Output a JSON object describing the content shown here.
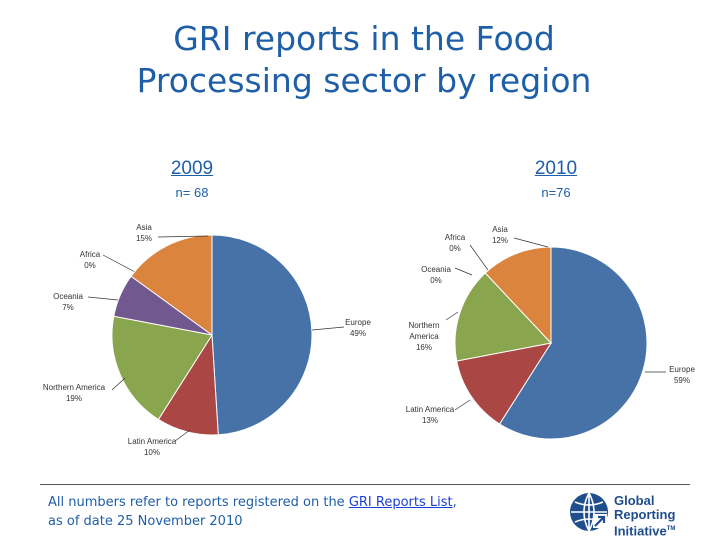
{
  "title_line1": "GRI reports in the Food",
  "title_line2": "Processing sector by region",
  "footnote": {
    "before": "All numbers refer to reports registered on the ",
    "link": "GRI Reports List",
    "after": ",",
    "line2": "as of date 25 November 2010"
  },
  "logo": {
    "line1": "Global",
    "line2": "Reporting",
    "line3": "Initiative",
    "tm": "TM"
  },
  "colors": {
    "Europe": "#4672a8",
    "Latin America": "#aa4643",
    "Northern America": "#89a54e",
    "Oceania": "#71588f",
    "Africa": "#4198af",
    "Asia": "#db843d"
  },
  "chart_data": [
    {
      "type": "pie",
      "title": "2009",
      "subtitle": "n= 68",
      "slices": [
        {
          "name": "Europe",
          "value": 49,
          "label": [
            "Europe",
            "49%"
          ]
        },
        {
          "name": "Latin America",
          "value": 10,
          "label": [
            "Latin America",
            "10%"
          ]
        },
        {
          "name": "Northern America",
          "value": 19,
          "label": [
            "Northern America",
            "19%"
          ]
        },
        {
          "name": "Oceania",
          "value": 7,
          "label": [
            "Oceania",
            "7%"
          ]
        },
        {
          "name": "Africa",
          "value": 0,
          "label": [
            "Africa",
            "0%"
          ]
        },
        {
          "name": "Asia",
          "value": 15,
          "label": [
            "Asia",
            "15%"
          ]
        }
      ]
    },
    {
      "type": "pie",
      "title": "2010",
      "subtitle": "n=76",
      "slices": [
        {
          "name": "Europe",
          "value": 59,
          "label": [
            "Europe",
            "59%"
          ]
        },
        {
          "name": "Latin America",
          "value": 13,
          "label": [
            "Latin America",
            "13%"
          ]
        },
        {
          "name": "Northern America",
          "value": 16,
          "label": [
            "Northern",
            "America",
            "16%"
          ]
        },
        {
          "name": "Oceania",
          "value": 0,
          "label": [
            "Oceania",
            "0%"
          ]
        },
        {
          "name": "Africa",
          "value": 0,
          "label": [
            "Africa",
            "0%"
          ]
        },
        {
          "name": "Asia",
          "value": 12,
          "label": [
            "Asia",
            "12%"
          ]
        }
      ]
    }
  ]
}
